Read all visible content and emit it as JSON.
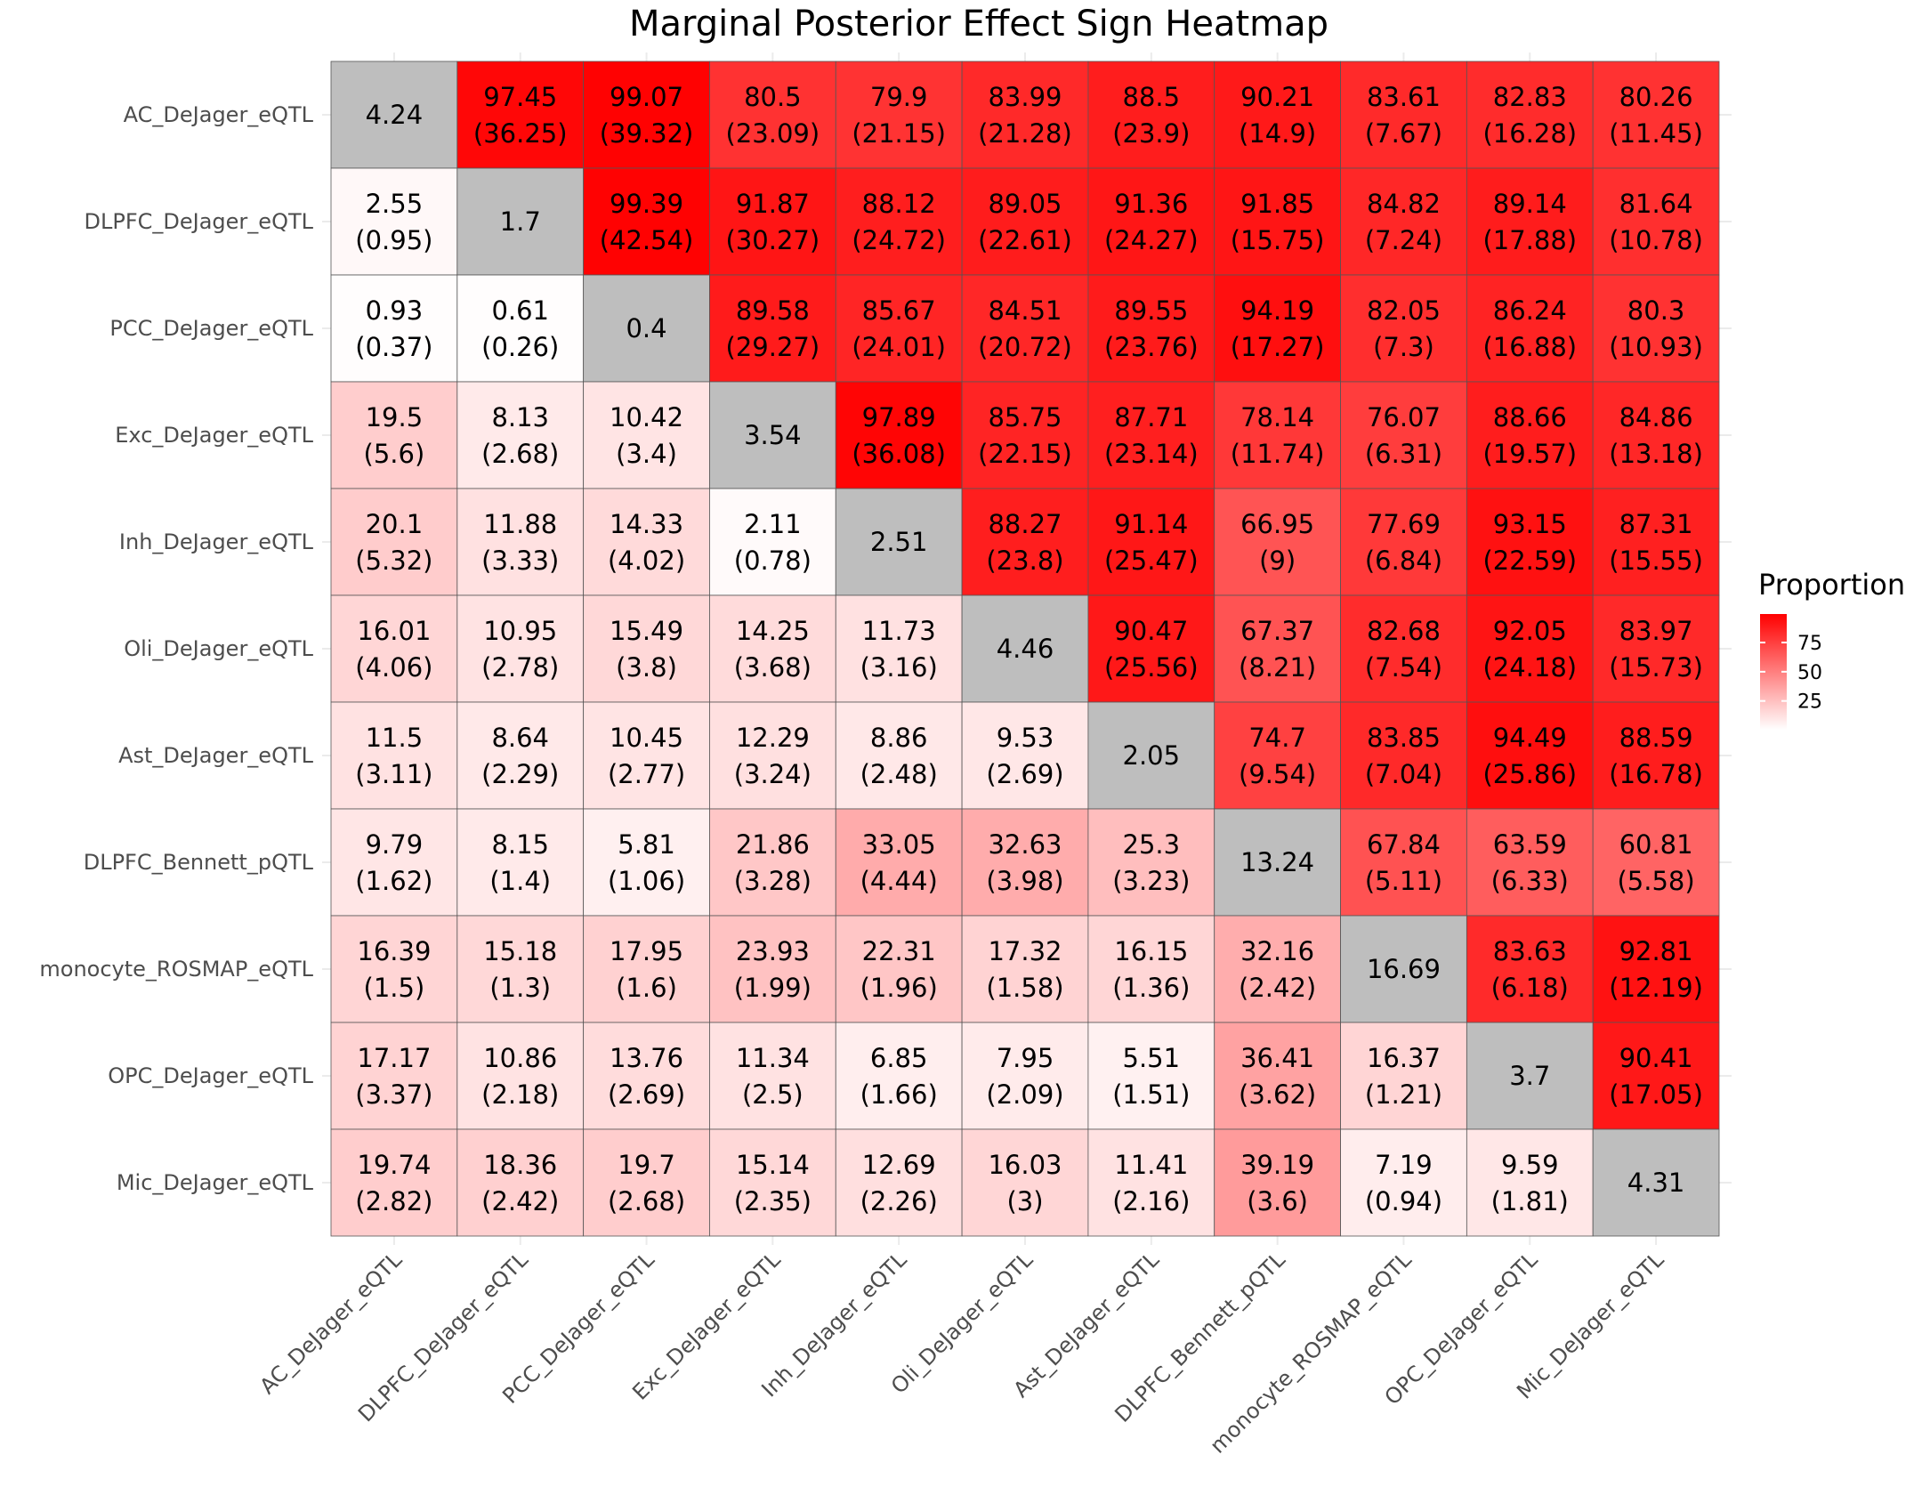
{
  "chart_data": {
    "type": "heatmap",
    "title": "Marginal Posterior Effect Sign Heatmap",
    "xlabel": "",
    "ylabel": "",
    "rows": [
      "AC_DeJager_eQTL",
      "DLPFC_DeJager_eQTL",
      "PCC_DeJager_eQTL",
      "Exc_DeJager_eQTL",
      "Inh_DeJager_eQTL",
      "Oli_DeJager_eQTL",
      "Ast_DeJager_eQTL",
      "DLPFC_Bennett_pQTL",
      "monocyte_ROSMAP_eQTL",
      "OPC_DeJager_eQTL",
      "Mic_DeJager_eQTL"
    ],
    "columns": [
      "AC_DeJager_eQTL",
      "DLPFC_DeJager_eQTL",
      "PCC_DeJager_eQTL",
      "Exc_DeJager_eQTL",
      "Inh_DeJager_eQTL",
      "Oli_DeJager_eQTL",
      "Ast_DeJager_eQTL",
      "DLPFC_Bennett_pQTL",
      "monocyte_ROSMAP_eQTL",
      "OPC_DeJager_eQTL",
      "Mic_DeJager_eQTL"
    ],
    "values": [
      [
        4.24,
        97.45,
        99.07,
        80.5,
        79.9,
        83.99,
        88.5,
        90.21,
        83.61,
        82.83,
        80.26
      ],
      [
        2.55,
        1.7,
        99.39,
        91.87,
        88.12,
        89.05,
        91.36,
        91.85,
        84.82,
        89.14,
        81.64
      ],
      [
        0.93,
        0.61,
        0.4,
        89.58,
        85.67,
        84.51,
        89.55,
        94.19,
        82.05,
        86.24,
        80.3
      ],
      [
        19.5,
        8.13,
        10.42,
        3.54,
        97.89,
        85.75,
        87.71,
        78.14,
        76.07,
        88.66,
        84.86
      ],
      [
        20.1,
        11.88,
        14.33,
        2.11,
        2.51,
        88.27,
        91.14,
        66.95,
        77.69,
        93.15,
        87.31
      ],
      [
        16.01,
        10.95,
        15.49,
        14.25,
        11.73,
        4.46,
        90.47,
        67.37,
        82.68,
        92.05,
        83.97
      ],
      [
        11.5,
        8.64,
        10.45,
        12.29,
        8.86,
        9.53,
        2.05,
        74.7,
        83.85,
        94.49,
        88.59
      ],
      [
        9.79,
        8.15,
        5.81,
        21.86,
        33.05,
        32.63,
        25.3,
        13.24,
        67.84,
        63.59,
        60.81
      ],
      [
        16.39,
        15.18,
        17.95,
        23.93,
        22.31,
        17.32,
        16.15,
        32.16,
        16.69,
        83.63,
        92.81
      ],
      [
        17.17,
        10.86,
        13.76,
        11.34,
        6.85,
        7.95,
        5.51,
        36.41,
        16.37,
        3.7,
        90.41
      ],
      [
        19.74,
        18.36,
        19.7,
        15.14,
        12.69,
        16.03,
        11.41,
        39.19,
        7.19,
        9.59,
        4.31
      ]
    ],
    "secondary_values": [
      [
        null,
        "(36.25)",
        "(39.32)",
        "(23.09)",
        "(21.15)",
        "(21.28)",
        "(23.9)",
        "(14.9)",
        "(7.67)",
        "(16.28)",
        "(11.45)"
      ],
      [
        "(0.95)",
        null,
        "(42.54)",
        "(30.27)",
        "(24.72)",
        "(22.61)",
        "(24.27)",
        "(15.75)",
        "(7.24)",
        "(17.88)",
        "(10.78)"
      ],
      [
        "(0.37)",
        "(0.26)",
        null,
        "(29.27)",
        "(24.01)",
        "(20.72)",
        "(23.76)",
        "(17.27)",
        "(7.3)",
        "(16.88)",
        "(10.93)"
      ],
      [
        "(5.6)",
        "(2.68)",
        "(3.4)",
        null,
        "(36.08)",
        "(22.15)",
        "(23.14)",
        "(11.74)",
        "(6.31)",
        "(19.57)",
        "(13.18)"
      ],
      [
        "(5.32)",
        "(3.33)",
        "(4.02)",
        "(0.78)",
        null,
        "(23.8)",
        "(25.47)",
        "(9)",
        "(6.84)",
        "(22.59)",
        "(15.55)"
      ],
      [
        "(4.06)",
        "(2.78)",
        "(3.8)",
        "(3.68)",
        "(3.16)",
        null,
        "(25.56)",
        "(8.21)",
        "(7.54)",
        "(24.18)",
        "(15.73)"
      ],
      [
        "(3.11)",
        "(2.29)",
        "(2.77)",
        "(3.24)",
        "(2.48)",
        "(2.69)",
        null,
        "(9.54)",
        "(7.04)",
        "(25.86)",
        "(16.78)"
      ],
      [
        "(1.62)",
        "(1.4)",
        "(1.06)",
        "(3.28)",
        "(4.44)",
        "(3.98)",
        "(3.23)",
        null,
        "(5.11)",
        "(6.33)",
        "(5.58)"
      ],
      [
        "(1.5)",
        "(1.3)",
        "(1.6)",
        "(1.99)",
        "(1.96)",
        "(1.58)",
        "(1.36)",
        "(2.42)",
        null,
        "(6.18)",
        "(12.19)"
      ],
      [
        "(3.37)",
        "(2.18)",
        "(2.69)",
        "(2.5)",
        "(1.66)",
        "(2.09)",
        "(1.51)",
        "(3.62)",
        "(1.21)",
        null,
        "(17.05)"
      ],
      [
        "(2.82)",
        "(2.42)",
        "(2.68)",
        "(2.35)",
        "(2.26)",
        "(3)",
        "(2.16)",
        "(3.6)",
        "(0.94)",
        "(1.81)",
        null
      ]
    ],
    "diagonal_color": "#bebebe",
    "color_scale": {
      "low": "#ffffff",
      "high": "#ff0000",
      "min": 0,
      "max": 100
    },
    "legend": {
      "title": "Proportion",
      "ticks": [
        25,
        50,
        75
      ],
      "placement": "right"
    },
    "grid": true
  }
}
